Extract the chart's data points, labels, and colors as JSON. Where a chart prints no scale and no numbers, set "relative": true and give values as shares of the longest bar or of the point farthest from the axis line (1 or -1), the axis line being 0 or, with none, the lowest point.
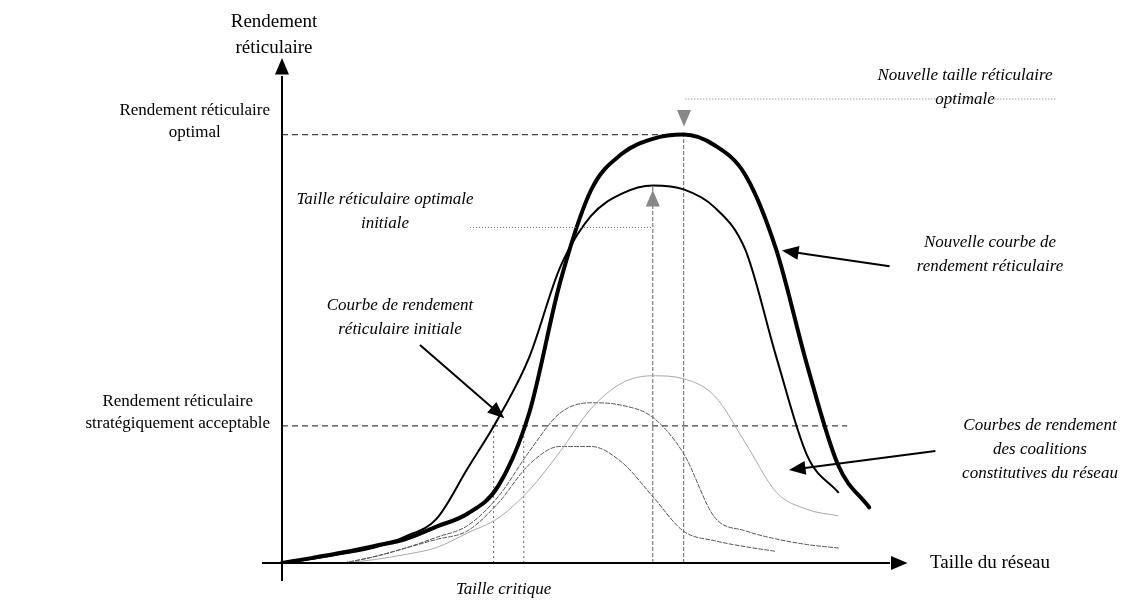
{
  "chart_data": {
    "type": "line",
    "relative": true,
    "xlabel": "Taille du réseau",
    "ylabel": "Rendement réticulaire",
    "marker": "none",
    "categories": [
      null,
      null,
      null,
      null,
      null,
      null,
      null,
      null,
      null,
      null,
      null,
      null,
      null,
      null,
      null,
      null,
      null,
      null,
      null,
      null,
      null
    ],
    "series": [
      {
        "color": "#000000",
        "line_style": "solid",
        "values": [
          0,
          0.012,
          0.025,
          0.04,
          0.056,
          0.085,
          0.115,
          0.18,
          0.35,
          0.655,
          0.87,
          0.955,
          0.99,
          1.0,
          0.975,
          0.905,
          0.73,
          0.46,
          0.228,
          0.13,
          null
        ]
      },
      {
        "color": "#000000",
        "line_style": "solid",
        "values": [
          0,
          0.01,
          0.022,
          0.036,
          0.062,
          0.103,
          0.22,
          0.338,
          0.48,
          0.69,
          0.81,
          0.862,
          0.881,
          0.872,
          0.83,
          0.73,
          0.48,
          0.25,
          0.165,
          null,
          null
        ]
      },
      {
        "color": "#aaaaaa",
        "line_style": "solid",
        "values": [
          null,
          null,
          0,
          0.008,
          0.02,
          0.036,
          0.07,
          0.105,
          0.17,
          0.26,
          0.36,
          0.42,
          0.437,
          0.43,
          0.39,
          0.28,
          0.165,
          0.125,
          0.11,
          null,
          null
        ]
      },
      {
        "color": "#555555",
        "line_style": "dashed",
        "values": [
          null,
          null,
          0,
          0.015,
          0.035,
          0.06,
          0.087,
          0.155,
          0.26,
          0.35,
          0.374,
          0.368,
          0.34,
          0.255,
          0.107,
          0.075,
          0.056,
          0.043,
          0.035,
          null,
          null
        ]
      },
      {
        "color": "#555555",
        "line_style": "dashed",
        "values": [
          null,
          null,
          0,
          0.015,
          0.035,
          0.055,
          0.075,
          0.14,
          0.23,
          0.272,
          0.272,
          0.235,
          0.155,
          0.074,
          0.052,
          0.038,
          0.027,
          null,
          null,
          null,
          null
        ]
      }
    ],
    "ref_lines": [
      {
        "axis": "y",
        "value": 1.0,
        "label": "Rendement réticulaire optimal",
        "line_style": "dashed"
      },
      {
        "axis": "y",
        "value": 0.32,
        "label": "Rendement réticulaire stratégiquement acceptable",
        "line_style": "dashed"
      }
    ],
    "annotations": [
      "Nouvelle taille réticulaire optimale",
      "Taille réticulaire optimale initiale",
      "Nouvelle courbe de rendement réticulaire",
      "Courbe de rendement réticulaire initiale",
      "Courbes de rendement des coalitions constitutives du réseau",
      "Taille critique"
    ]
  }
}
